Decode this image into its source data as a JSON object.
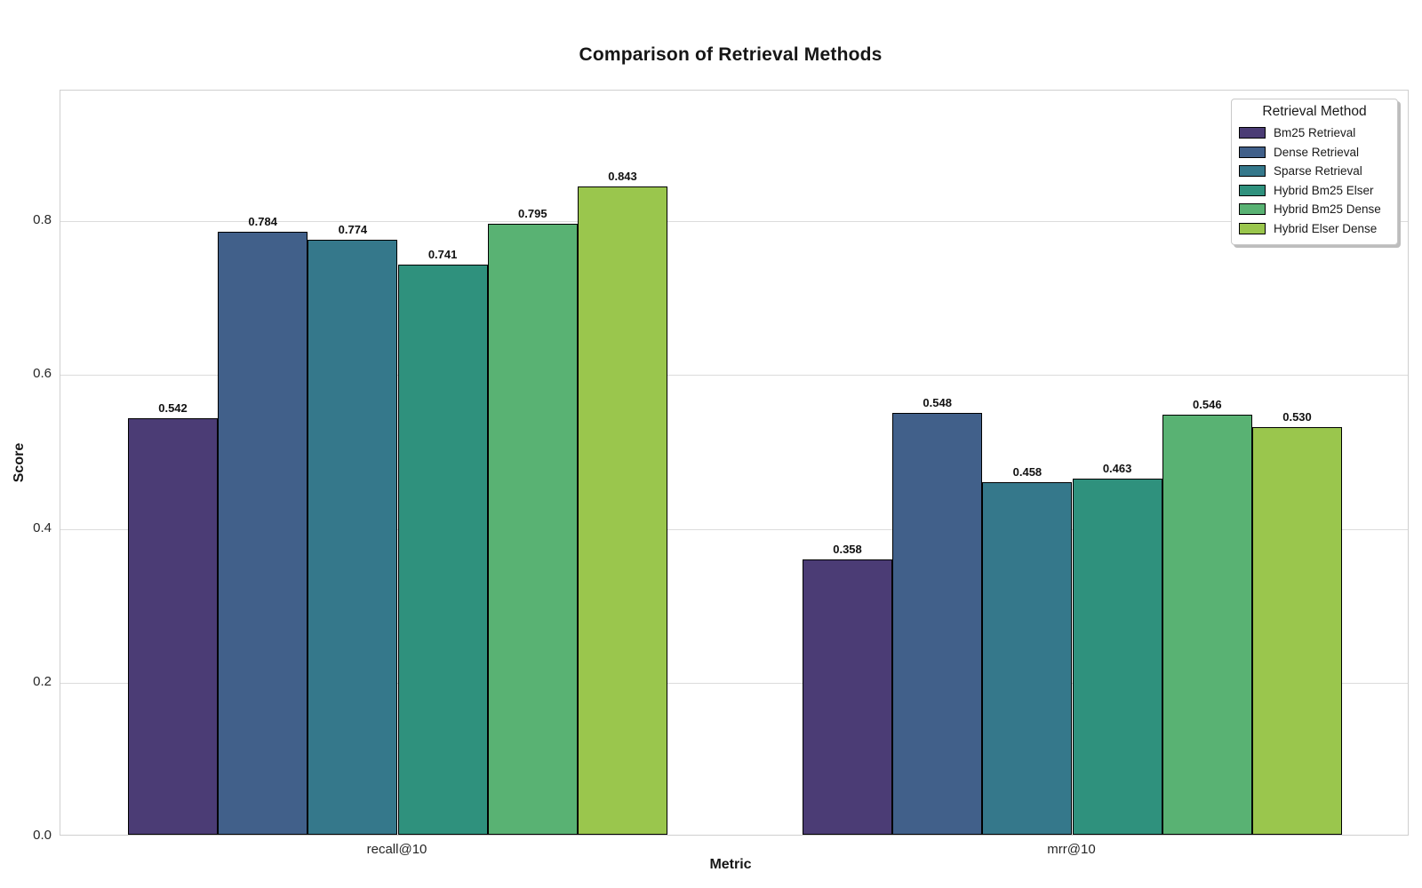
{
  "chart_data": {
    "type": "bar",
    "title": "Comparison of Retrieval Methods",
    "xlabel": "Metric",
    "ylabel": "Score",
    "categories": [
      "recall@10",
      "mrr@10"
    ],
    "series": [
      {
        "name": "Bm25 Retrieval",
        "color": "#4b3c75",
        "values": [
          0.542,
          0.358
        ]
      },
      {
        "name": "Dense Retrieval",
        "color": "#41608a",
        "values": [
          0.784,
          0.548
        ]
      },
      {
        "name": "Sparse Retrieval",
        "color": "#35788b",
        "values": [
          0.774,
          0.458
        ]
      },
      {
        "name": "Hybrid Bm25 Elser",
        "color": "#2f917d",
        "values": [
          0.741,
          0.463
        ]
      },
      {
        "name": "Hybrid Bm25 Dense",
        "color": "#59b273",
        "values": [
          0.795,
          0.546
        ]
      },
      {
        "name": "Hybrid Elser Dense",
        "color": "#9ac64d",
        "values": [
          0.843,
          0.53
        ]
      }
    ],
    "ylim": [
      0,
      0.97
    ],
    "yticks": [
      0.0,
      0.2,
      0.4,
      0.6,
      0.8
    ],
    "ytick_labels": [
      "0.0",
      "0.2",
      "0.4",
      "0.6",
      "0.8"
    ],
    "value_labels": {
      "recall@10": [
        "0.542",
        "0.784",
        "0.774",
        "0.741",
        "0.795",
        "0.843"
      ],
      "mrr@10": [
        "0.358",
        "0.548",
        "0.458",
        "0.463",
        "0.546",
        "0.530"
      ]
    },
    "legend": {
      "title": "Retrieval Method",
      "position": "upper right"
    },
    "grid": true,
    "bar_edge_color": "#000000",
    "group_width_fraction": 0.8
  }
}
